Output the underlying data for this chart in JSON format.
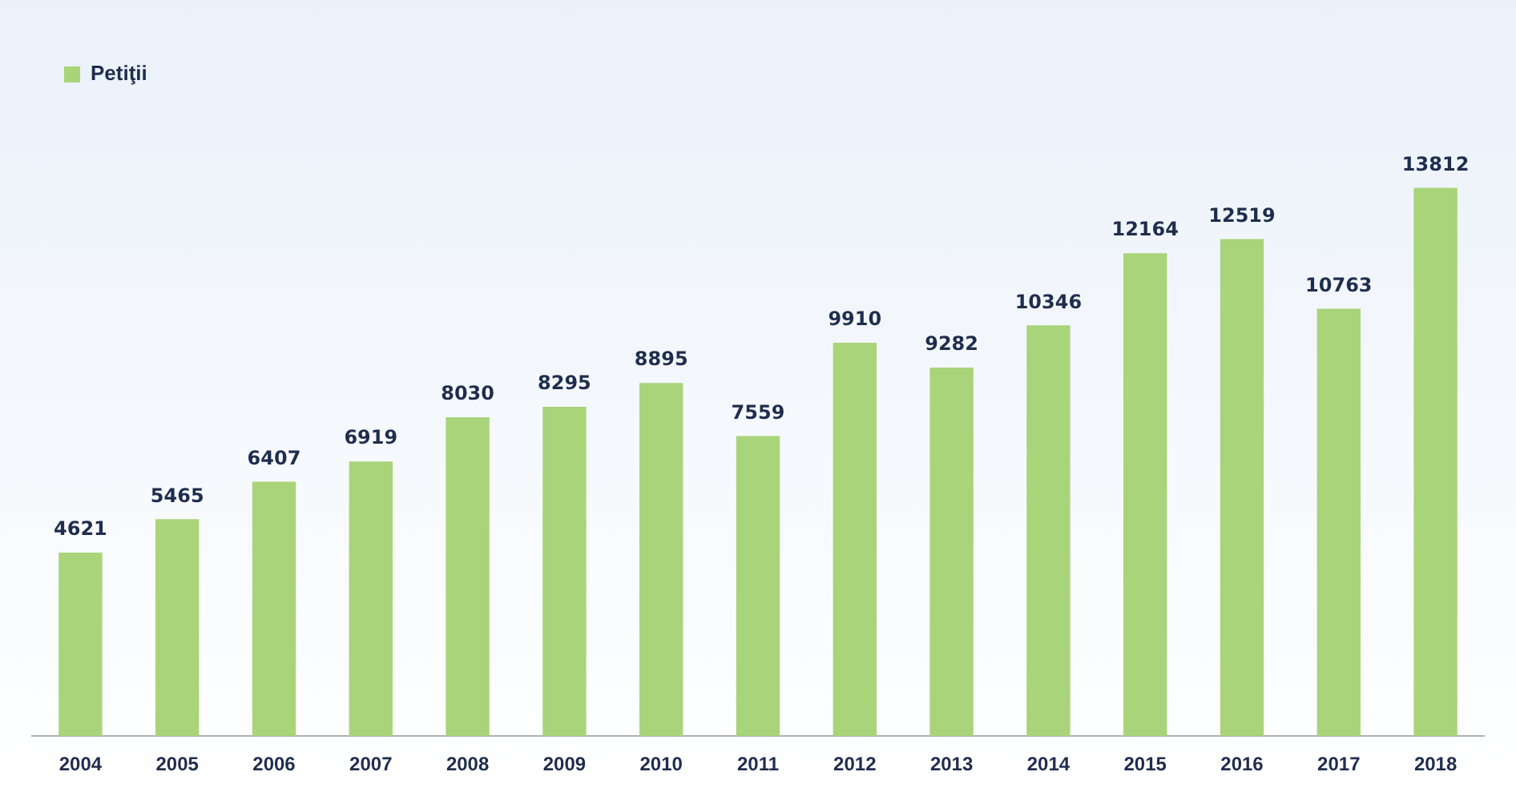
{
  "chart_data": {
    "type": "bar",
    "categories": [
      "2004",
      "2005",
      "2006",
      "2007",
      "2008",
      "2009",
      "2010",
      "2011",
      "2012",
      "2013",
      "2014",
      "2015",
      "2016",
      "2017",
      "2018"
    ],
    "series": [
      {
        "name": "Petiţii",
        "color": "#a9d47a",
        "values": [
          4621,
          5465,
          6407,
          6919,
          8030,
          8295,
          8895,
          7559,
          9910,
          9282,
          10346,
          12164,
          12519,
          10763,
          13812
        ]
      }
    ],
    "data_labels": true,
    "legend": "top left",
    "grid": false
  }
}
